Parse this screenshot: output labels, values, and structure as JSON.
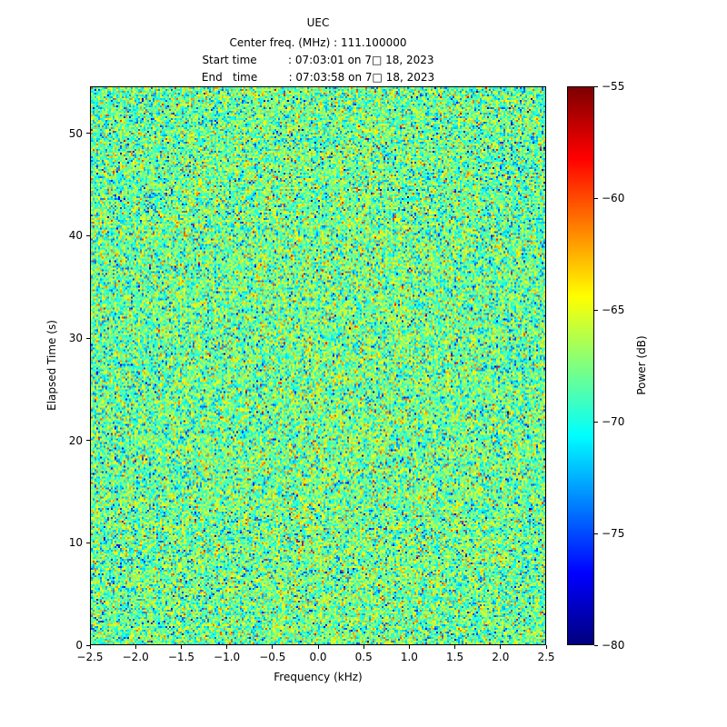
{
  "figure": {
    "header_lines": [
      "Center freq. (MHz) : 111.100000",
      "Start time         : 07:03:01 on 7□ 18, 2023",
      "End   time         : 07:03:58 on 7□ 18, 2023"
    ]
  },
  "chart_data": {
    "type": "heatmap",
    "title": "UEC",
    "xlabel": "Frequency (kHz)",
    "ylabel": "Elapsed Time (s)",
    "xlim": [
      -2.5,
      2.5
    ],
    "ylim": [
      0,
      54.6
    ],
    "xtick_values": [
      -2.5,
      -2.0,
      -1.5,
      -1.0,
      -0.5,
      0.0,
      0.5,
      1.0,
      1.5,
      2.0,
      2.5
    ],
    "xtick_labels": [
      "−2.5",
      "−2.0",
      "−1.5",
      "−1.0",
      "−0.5",
      "0.0",
      "0.5",
      "1.0",
      "1.5",
      "2.0",
      "2.5"
    ],
    "ytick_values": [
      0,
      10,
      20,
      30,
      40,
      50
    ],
    "ytick_labels": [
      "0",
      "10",
      "20",
      "30",
      "40",
      "50"
    ],
    "colorbar": {
      "label": "Power (dB)",
      "vmin": -80,
      "vmax": -55,
      "tick_values": [
        -55,
        -60,
        -65,
        -70,
        -75,
        -80
      ],
      "tick_labels": [
        "−55",
        "−60",
        "−65",
        "−70",
        "−75",
        "−80"
      ],
      "colormap": "jet"
    },
    "content_description": "Broadband random noise spectrogram; no coherent signal visible; power values mostly between −75 and −62 dB",
    "noise_model": {
      "distribution": "gaussian",
      "mean_db": -68.3,
      "std_db": 3.1,
      "seed": 7
    },
    "grid": {
      "cols": 250,
      "rows": 306
    }
  }
}
